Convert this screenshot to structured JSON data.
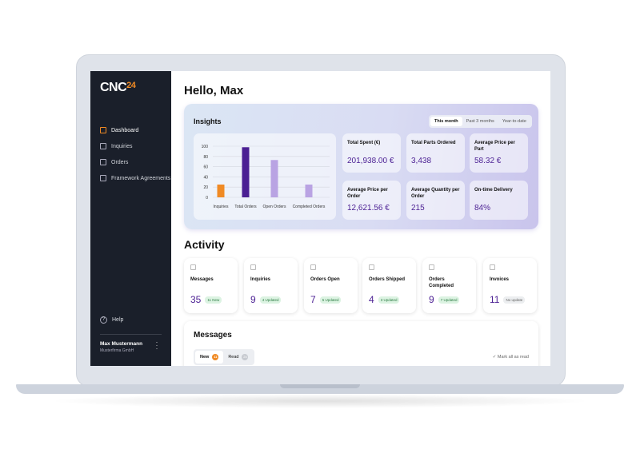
{
  "brand": {
    "name": "CNC",
    "suffix": "24",
    "accent": "#f08a24"
  },
  "sidebar": {
    "items": [
      {
        "label": "Dashboard",
        "icon": "grid-icon"
      },
      {
        "label": "Inquiries",
        "icon": "clipboard-icon"
      },
      {
        "label": "Orders",
        "icon": "checkbox-icon"
      },
      {
        "label": "Framework Agreements",
        "icon": "copy-icon"
      }
    ],
    "help": "Help",
    "user": {
      "name": "Max Mustermann",
      "company": "Musterfirma GmbH"
    }
  },
  "greeting": "Hello, Max",
  "insights": {
    "title": "Insights",
    "ranges": [
      "This month",
      "Past 3 months",
      "Year-to-date"
    ],
    "stats": [
      {
        "label": "Total Spent (€)",
        "value": "201,938.00 €"
      },
      {
        "label": "Total Parts Ordered",
        "value": "3,438"
      },
      {
        "label": "Average Price per Part",
        "value": "58.32 €"
      },
      {
        "label": "Average Price per Order",
        "value": "12,621.56 €"
      },
      {
        "label": "Average Quantity per Order",
        "value": "215"
      },
      {
        "label": "On-time Delivery",
        "value": "84%"
      }
    ]
  },
  "chart_data": {
    "type": "bar",
    "categories": [
      "Inquiries",
      "Total Orders",
      "Open Orders",
      "Completed Orders"
    ],
    "values": [
      25,
      98,
      73,
      25
    ],
    "colors": [
      "#f08a24",
      "#4b1f93",
      "#b9a3e3",
      "#b9a3e3"
    ],
    "ylim": [
      0,
      100
    ],
    "yticks": [
      0,
      20,
      40,
      60,
      80,
      100
    ],
    "grid": true
  },
  "activity": {
    "title": "Activity",
    "cards": [
      {
        "label": "Messages",
        "value": "35",
        "badge": "11 New",
        "icon": "message-icon"
      },
      {
        "label": "Inquiries",
        "value": "9",
        "badge": "4 Updated",
        "icon": "calendar-icon"
      },
      {
        "label": "Orders Open",
        "value": "7",
        "badge": "5 Updated",
        "icon": "box-icon"
      },
      {
        "label": "Orders Shipped",
        "value": "4",
        "badge": "3 Updated",
        "icon": "truck-icon"
      },
      {
        "label": "Orders Completed",
        "value": "9",
        "badge": "7 Updated",
        "icon": "badge-check-icon"
      },
      {
        "label": "Invoices",
        "value": "11",
        "badge": "No update",
        "icon": "invoice-icon"
      }
    ]
  },
  "messages": {
    "title": "Messages",
    "tabs": [
      {
        "label": "New",
        "count": "11"
      },
      {
        "label": "Read",
        "count": "24"
      }
    ],
    "mark_all": "Mark all as read"
  }
}
